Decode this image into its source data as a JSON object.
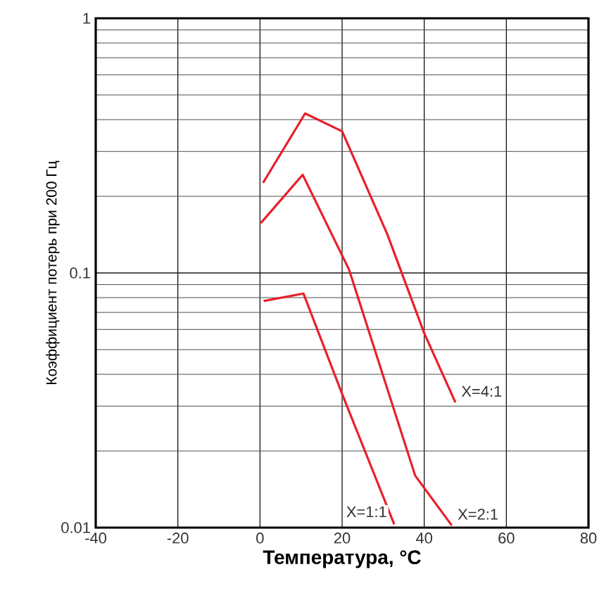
{
  "chart_data": {
    "type": "line",
    "xlabel": "Температура, °C",
    "ylabel": "Коэффициент потерь при 200 Гц",
    "xlim": [
      -40,
      80
    ],
    "ylim": [
      0.01,
      1
    ],
    "xticks": [
      -40,
      -20,
      0,
      20,
      40,
      60,
      80
    ],
    "yticks": [
      0.01,
      0.1,
      1
    ],
    "log": "y",
    "grid": true,
    "marker": "none",
    "line_style": "solid",
    "series": [
      {
        "name": "X=4:1",
        "color": "#e8202a",
        "x": [
          0.75,
          11,
          20,
          31,
          40,
          47.6
        ],
        "values": [
          0.226,
          0.423,
          0.36,
          0.142,
          0.058,
          0.031
        ]
      },
      {
        "name": "X=2:1",
        "color": "#e8202a",
        "x": [
          0.2,
          10.4,
          21.7,
          37.8,
          46.7
        ],
        "values": [
          0.157,
          0.243,
          0.103,
          0.016,
          0.0102
        ]
      },
      {
        "name": "X=1:1",
        "color": "#e8202a",
        "x": [
          0.9,
          10.6,
          20,
          32.7
        ],
        "values": [
          0.0776,
          0.083,
          0.0335,
          0.0103
        ]
      }
    ]
  }
}
